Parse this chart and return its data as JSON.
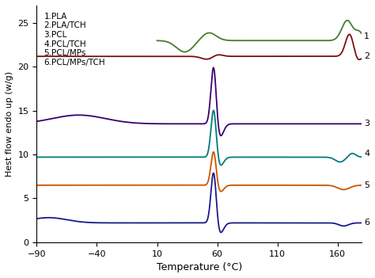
{
  "title": "",
  "xlabel": "Temperature (°C)",
  "ylabel": "Hest flow endo up (w/g)",
  "xlim": [
    -90,
    180
  ],
  "ylim": [
    0,
    27
  ],
  "xticks": [
    -90,
    -40,
    10,
    60,
    110,
    160
  ],
  "yticks": [
    0,
    5,
    10,
    15,
    20,
    25
  ],
  "legend_text": [
    "1.PLA",
    "2.PLA/TCH",
    "3.PCL",
    "4.PCL/TCH",
    "5.PCL/MPs",
    "6.PCL/MPs/TCH"
  ],
  "colors": {
    "1_PLA": "#4a7c2f",
    "2_PLA_TCH": "#7b1010",
    "3_PCL": "#3b0070",
    "4_PCL_TCH": "#007b7b",
    "5_PCL_MPs": "#cc5500",
    "6_PCL_MPs_TCH": "#1a1a8c"
  },
  "background": "#ffffff",
  "line_width": 1.3
}
